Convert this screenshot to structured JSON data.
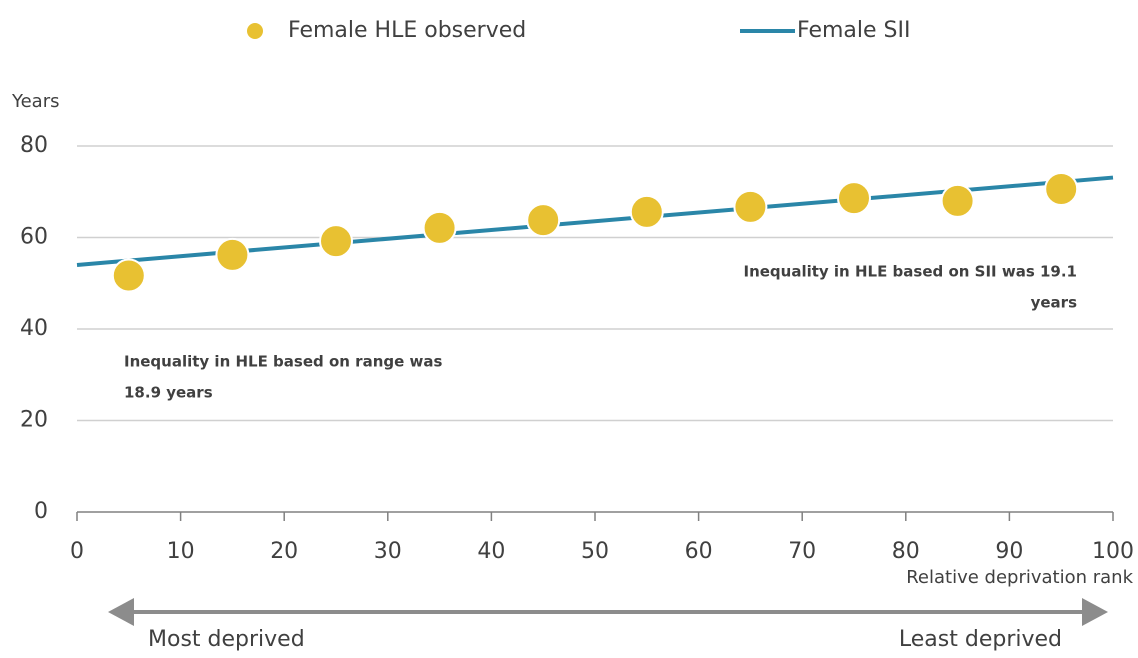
{
  "chart_data": {
    "type": "scatter",
    "y_label": "Years",
    "x_label": "Relative deprivation rank",
    "xlim": [
      0,
      100
    ],
    "xticks": [
      0,
      10,
      20,
      30,
      40,
      50,
      60,
      70,
      80,
      90,
      100
    ],
    "ylim": [
      0,
      80
    ],
    "yticks": [
      0,
      20,
      40,
      60,
      80
    ],
    "grid": true,
    "legend": "top",
    "series": [
      {
        "name": "Female HLE observed",
        "type": "scatter",
        "color": "#e8c132",
        "x": [
          5,
          15,
          25,
          35,
          45,
          55,
          65,
          75,
          85,
          95
        ],
        "values": [
          51.7,
          56.2,
          59.2,
          62.1,
          63.8,
          65.6,
          66.7,
          68.6,
          68.0,
          70.6
        ]
      },
      {
        "name": "Female SII",
        "type": "line",
        "color": "#2a86a8",
        "x": [
          0,
          100
        ],
        "values": [
          54.0,
          73.1
        ]
      }
    ],
    "annotations": [
      {
        "lines": [
          "Inequality in HLE based on range was",
          "18.9 years"
        ]
      },
      {
        "lines": [
          "Inequality in HLE based on SII was 19.1",
          "years"
        ]
      }
    ],
    "arrow_labels": [
      "Most deprived",
      "Least deprived"
    ]
  }
}
